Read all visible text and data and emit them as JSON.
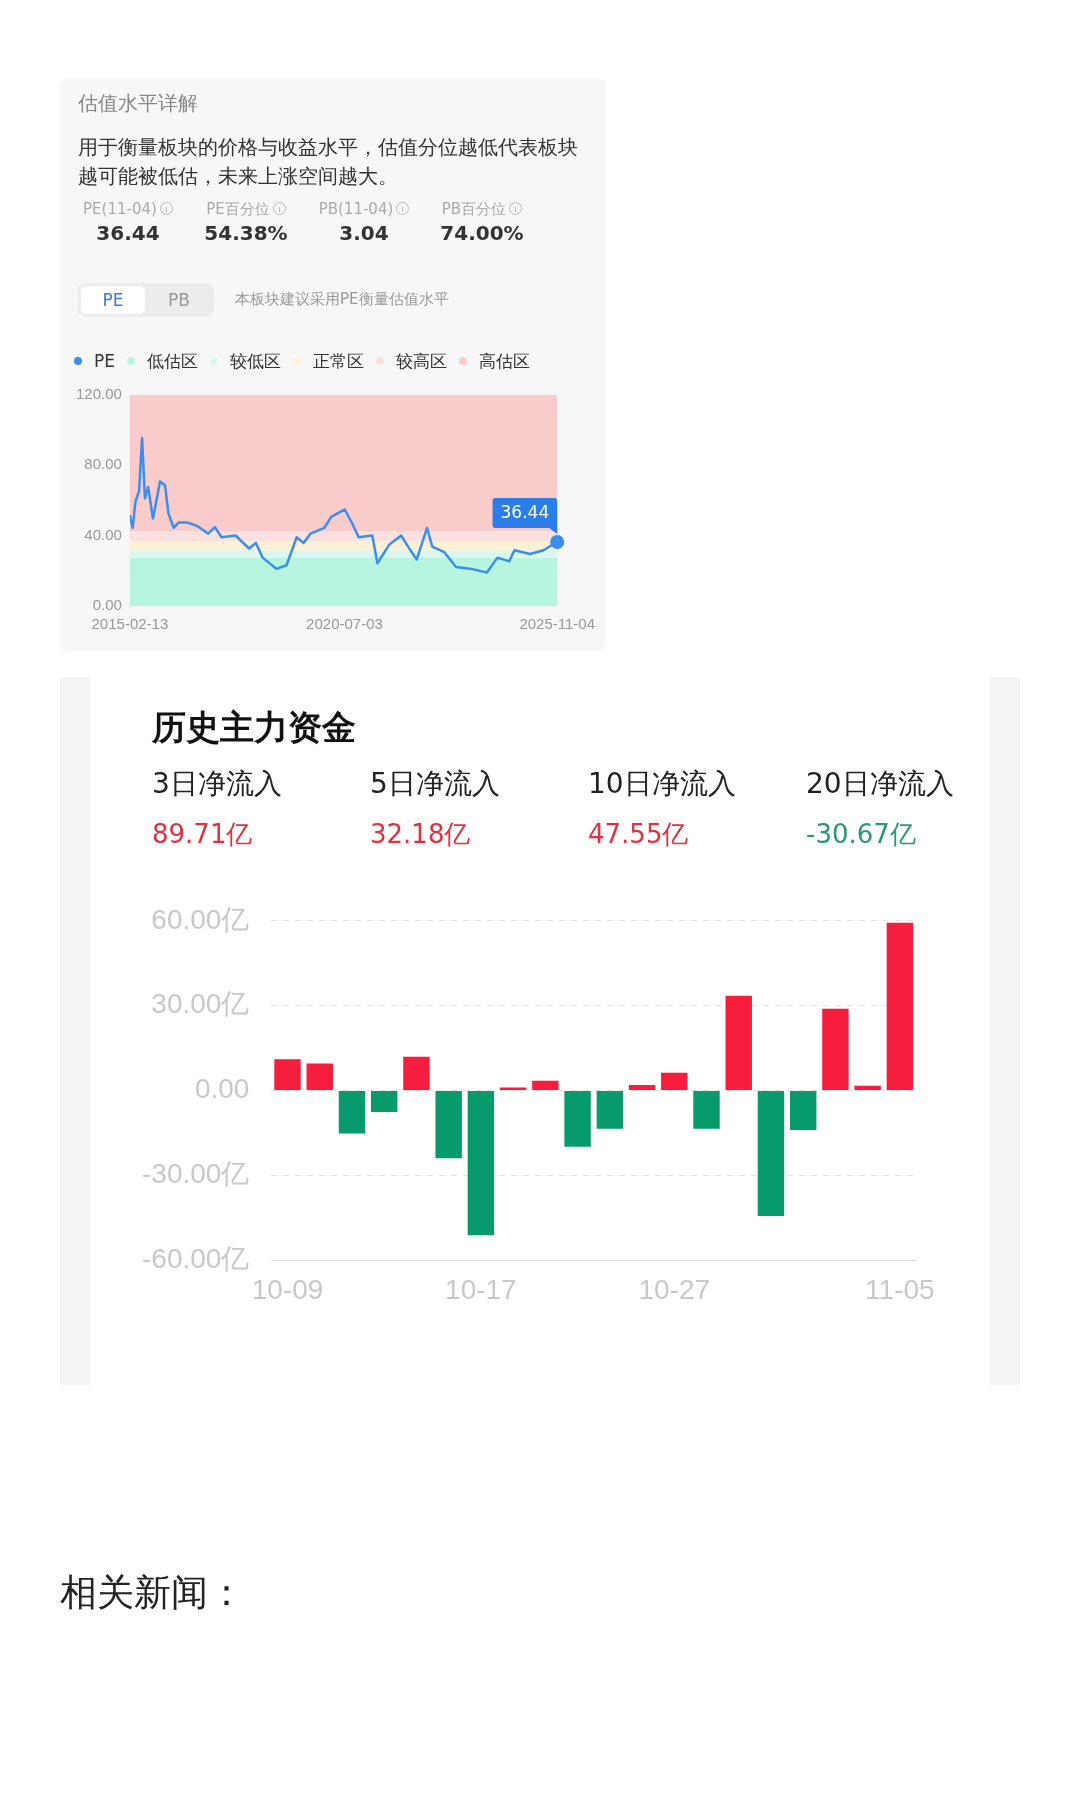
{
  "chart_data": [
    {
      "type": "line",
      "title": "估值水平详解",
      "subtitle": "用于衡量板块的价格与收益水平，估值分位越低代表板块越可能被低估，未来上涨空间越大。",
      "annotations": [
        "PE(11-04)",
        "36.44",
        "PE百分位",
        "54.38%",
        "PB(11-04)",
        "3.04",
        "PB百分位",
        "74.00%",
        "PE",
        "PB",
        "本板块建议采用PE衡量估值水平",
        {
          "text": "36.44",
          "x": "2025-11-04",
          "y": 36.44
        }
      ],
      "x": [
        "2015-02-13",
        "2015-03-10",
        "2015-04-05",
        "2015-05-08",
        "2015-06-05",
        "2015-07-01",
        "2015-07-30",
        "2015-09-13",
        "2015-11-16",
        "2016-01-01",
        "2016-02-01",
        "2016-03-20",
        "2016-05-07",
        "2016-07-24",
        "2016-10-26",
        "2017-01-30",
        "2017-04-02",
        "2017-06-03",
        "2017-10-08",
        "2018-02-10",
        "2018-04-13",
        "2018-06-14",
        "2018-10-19",
        "2019-01-19",
        "2019-04-22",
        "2019-06-24",
        "2019-08-27",
        "2020-01-01",
        "2020-03-03",
        "2020-07-06",
        "2020-09-08",
        "2020-11-10",
        "2021-03-15",
        "2021-05-01",
        "2021-08-18",
        "2021-12-05",
        "2022-02-06",
        "2022-04-26",
        "2022-07-30",
        "2022-09-16",
        "2023-01-04",
        "2023-04-22",
        "2023-09-12",
        "2024-01-30",
        "2024-05-05",
        "2024-08-22",
        "2024-10-08",
        "2025-02-27",
        "2025-07-02",
        "2025-11-04"
      ],
      "series": [
        {
          "name": "PE",
          "color": "#3a8ef0",
          "values": [
            51.8,
            44.4,
            59.2,
            65.5,
            95.5,
            61.3,
            67.6,
            49.7,
            70.8,
            68.7,
            52.8,
            44.4,
            47.5,
            47.5,
            45.4,
            41.2,
            44.8,
            39.1,
            40.1,
            32.7,
            35.9,
            27.5,
            21.1,
            23.2,
            39.1,
            35.9,
            41.2,
            44.4,
            50.7,
            54.9,
            47.5,
            39.1,
            40.1,
            24.3,
            34.9,
            40.1,
            33.8,
            26.4,
            44.4,
            33.8,
            30.6,
            22.2,
            21.1,
            19.0,
            27.5,
            25.4,
            31.7,
            29.6,
            31.7,
            36.44
          ]
        }
      ],
      "bands": [
        {
          "axis": "y",
          "from": 0,
          "to": 27.5,
          "label": "低估区",
          "color": "#b8f5e0"
        },
        {
          "axis": "y",
          "from": 27.5,
          "to": 31.7,
          "label": "较低区",
          "color": "#dcf8ee"
        },
        {
          "axis": "y",
          "from": 31.7,
          "to": 37,
          "label": "正常区",
          "color": "#fdf0d5"
        },
        {
          "axis": "y",
          "from": 37,
          "to": 42.7,
          "label": "较高区",
          "color": "#fbe0e0"
        },
        {
          "axis": "y",
          "from": 42.7,
          "to": 120,
          "label": "高估区",
          "color": "#f9cbca"
        }
      ],
      "xlim": [
        "2015-02-13",
        "2025-11-04"
      ],
      "xticks": [
        "2015-02-13",
        "2020-07-03",
        "2025-11-04"
      ],
      "ylim": [
        0,
        120
      ],
      "yticks": [
        {
          "value": 0,
          "label": "0.00"
        },
        {
          "value": 40,
          "label": "40.00"
        },
        {
          "value": 80,
          "label": "80.00"
        },
        {
          "value": 120,
          "label": "120.00"
        }
      ],
      "legend": "top",
      "marker": "none",
      "line_style": "solid"
    },
    {
      "type": "bar",
      "title": "历史主力资金",
      "annotations": [
        "3日净流入",
        "89.71亿",
        "5日净流入",
        "32.18亿",
        "10日净流入",
        "47.55亿",
        "20日净流入",
        "-30.67亿",
        "相关新闻："
      ],
      "categories": [
        "10-09",
        null,
        null,
        null,
        null,
        null,
        "10-17",
        null,
        null,
        null,
        null,
        null,
        "10-27",
        null,
        null,
        null,
        null,
        null,
        null,
        "11-05"
      ],
      "values": [
        11.1,
        9.6,
        -15.2,
        -7.6,
        12.0,
        -23.9,
        -51.1,
        1.1,
        3.5,
        -19.8,
        -13.5,
        2.0,
        6.3,
        -13.5,
        33.5,
        -44.3,
        -13.9,
        28.9,
        1.7,
        59.3
      ],
      "colors": [
        "#f61e3c",
        "#f61e3c",
        "#069a6d",
        "#069a6d",
        "#f61e3c",
        "#069a6d",
        "#069a6d",
        "#f61e3c",
        "#f61e3c",
        "#069a6d",
        "#069a6d",
        "#f61e3c",
        "#f61e3c",
        "#069a6d",
        "#f61e3c",
        "#069a6d",
        "#069a6d",
        "#f61e3c",
        "#f61e3c",
        "#f61e3c"
      ],
      "ylim": [
        -60,
        60
      ],
      "yticks": [
        {
          "value": -60,
          "label": "-60.00亿"
        },
        {
          "value": -30,
          "label": "-30.00亿"
        },
        {
          "value": 0,
          "label": "0.00"
        },
        {
          "value": 30,
          "label": "30.00亿"
        },
        {
          "value": 60,
          "label": "60.00亿"
        }
      ],
      "grid": "y"
    }
  ]
}
